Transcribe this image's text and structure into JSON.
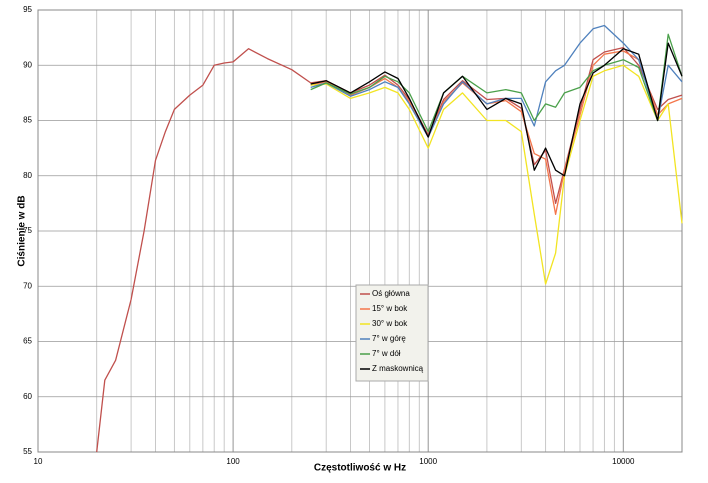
{
  "chart_data": {
    "type": "line",
    "x_label": "Częstotliwość w Hz",
    "y_label": "Ciśnienie w dB",
    "log_x": true,
    "grid": true,
    "xlim": [
      10,
      20000
    ],
    "ylim": [
      55,
      95
    ],
    "xticks": [
      10,
      100,
      1000,
      10000
    ],
    "xgrid": [
      20,
      30,
      40,
      50,
      60,
      70,
      80,
      90,
      200,
      300,
      400,
      500,
      600,
      700,
      800,
      900,
      2000,
      3000,
      4000,
      5000,
      6000,
      7000,
      8000,
      9000
    ],
    "yticks": [
      55,
      60,
      65,
      70,
      75,
      80,
      85,
      90,
      95
    ],
    "x": [
      20,
      22,
      25,
      30,
      35,
      40,
      45,
      50,
      60,
      70,
      80,
      90,
      100,
      120,
      150,
      200,
      250,
      300,
      400,
      500,
      600,
      700,
      800,
      1000,
      1200,
      1500,
      2000,
      2500,
      3000,
      3500,
      4000,
      4500,
      5000,
      6000,
      7000,
      8000,
      10000,
      12000,
      15000,
      17000,
      20000
    ],
    "series": [
      {
        "name": "Oś główna",
        "color": "#c0504d",
        "values": [
          55,
          61.5,
          63.3,
          68.8,
          75,
          81.4,
          84,
          86,
          87.3,
          88.2,
          90,
          90.2,
          90.3,
          91.5,
          90.6,
          89.6,
          88.4,
          88.6,
          87.5,
          88.2,
          89.1,
          88.2,
          86.9,
          83.7,
          86.9,
          88.6,
          86.9,
          87,
          86.1,
          81,
          82.3,
          77.5,
          80.6,
          86,
          90.5,
          91.2,
          91.6,
          90,
          86,
          86.9,
          87.3
        ]
      },
      {
        "name": "15° w bok",
        "color": "#f4764b",
        "values": [
          null,
          null,
          null,
          null,
          null,
          null,
          null,
          null,
          null,
          null,
          null,
          null,
          null,
          null,
          null,
          null,
          88.2,
          88.5,
          87.3,
          88,
          88.8,
          88,
          86.7,
          83.5,
          86.7,
          88.4,
          86.5,
          86.8,
          85.8,
          82,
          81.5,
          76.5,
          80.5,
          85.5,
          90,
          91,
          91.3,
          90.5,
          85.5,
          86.5,
          87
        ]
      },
      {
        "name": "30° w bok",
        "color": "#f2e422",
        "values": [
          null,
          null,
          null,
          null,
          null,
          null,
          null,
          null,
          null,
          null,
          null,
          null,
          null,
          null,
          null,
          null,
          88.2,
          88.3,
          87,
          87.5,
          88,
          87.5,
          86,
          82.5,
          86,
          87.5,
          85,
          85,
          84,
          76.5,
          70.2,
          73,
          80,
          85,
          89,
          89.5,
          90,
          89,
          85,
          86.5,
          75.7
        ]
      },
      {
        "name": "7° w górę",
        "color": "#4f81bd",
        "values": [
          null,
          null,
          null,
          null,
          null,
          null,
          null,
          null,
          null,
          null,
          null,
          null,
          null,
          null,
          null,
          null,
          88,
          88.4,
          87.2,
          87.8,
          88.5,
          88,
          86.5,
          83.5,
          86.5,
          88.5,
          86.5,
          87,
          87,
          84.5,
          88.5,
          89.5,
          90,
          92,
          93.3,
          93.6,
          92,
          90.5,
          85,
          90,
          88.5
        ]
      },
      {
        "name": "7° w dół",
        "color": "#4aa04a",
        "values": [
          null,
          null,
          null,
          null,
          null,
          null,
          null,
          null,
          null,
          null,
          null,
          null,
          null,
          null,
          null,
          null,
          87.8,
          88.4,
          87.4,
          88,
          89,
          88.5,
          87.5,
          84,
          87.5,
          89,
          87.5,
          87.8,
          87.5,
          85,
          86.5,
          86.2,
          87.5,
          88,
          89.5,
          90,
          90.5,
          89.8,
          85,
          92.8,
          89
        ]
      },
      {
        "name": "Z maskownicą",
        "color": "#000000",
        "values": [
          null,
          null,
          null,
          null,
          null,
          null,
          null,
          null,
          null,
          null,
          null,
          null,
          null,
          null,
          null,
          null,
          88.3,
          88.6,
          87.5,
          88.5,
          89.4,
          88.8,
          87,
          83.5,
          87.5,
          89,
          86,
          87,
          86.5,
          80.5,
          82.5,
          80.5,
          80,
          86.5,
          89.3,
          90,
          91.5,
          91,
          85,
          92,
          89
        ]
      }
    ]
  }
}
